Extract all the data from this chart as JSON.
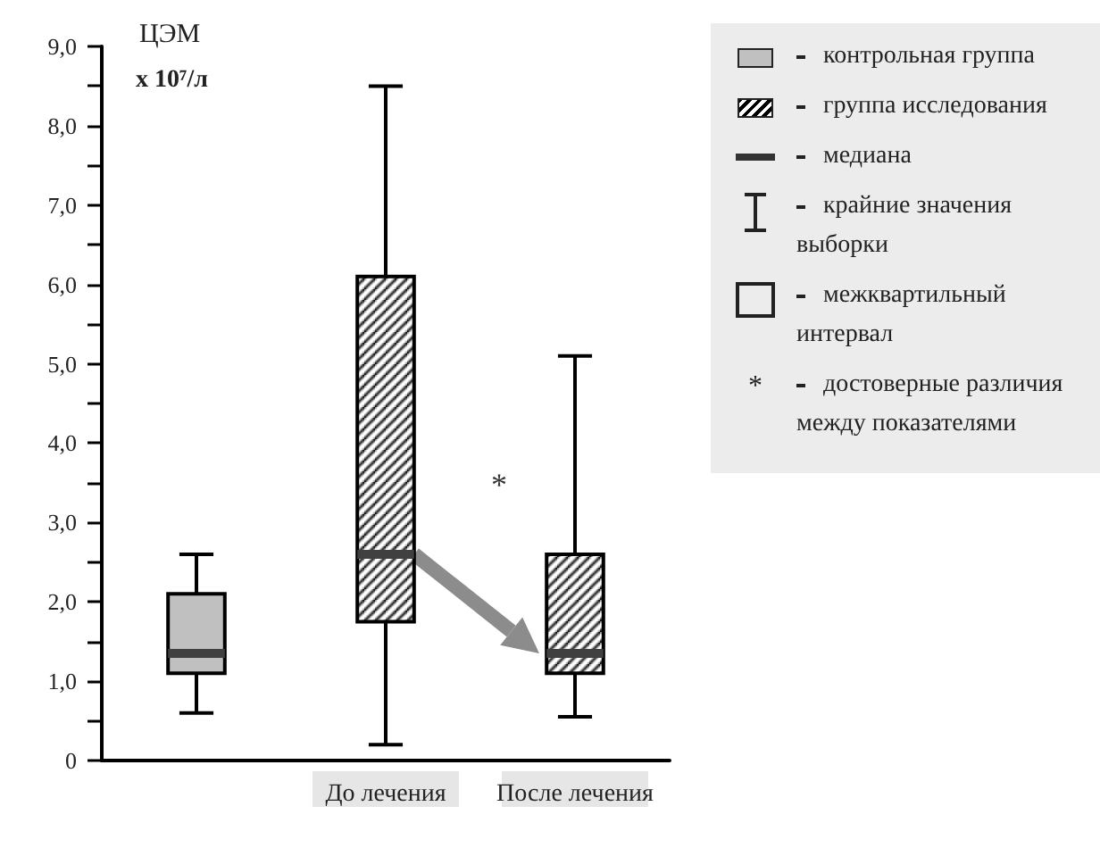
{
  "chart_data": {
    "type": "box",
    "ylabel": "ЦЭМ x 10⁷/л",
    "categories": [
      null,
      "До лечения",
      "После лечения"
    ],
    "series": [
      {
        "name": "контрольная группа",
        "color": "#c0c0c0",
        "boxes": [
          {
            "low": 0.6,
            "q1": 1.1,
            "median": 1.35,
            "q3": 2.1,
            "high": 2.6
          },
          null,
          null
        ]
      },
      {
        "name": "группа исследования",
        "color": "#000000",
        "boxes": [
          null,
          {
            "low": 0.2,
            "q1": 1.75,
            "median": 2.6,
            "q3": 6.1,
            "high": 8.5
          },
          {
            "low": 0.55,
            "q1": 1.1,
            "median": 1.35,
            "q3": 2.6,
            "high": 5.1
          }
        ]
      }
    ],
    "ylim": [
      0,
      9
    ],
    "yticks": [
      0,
      {
        "value": 0.5,
        "label": null
      },
      {
        "value": 1,
        "label": "1,0"
      },
      {
        "value": 1.5,
        "label": null
      },
      {
        "value": 2,
        "label": "2,0"
      },
      {
        "value": 2.5,
        "label": null
      },
      {
        "value": 3,
        "label": "3,0"
      },
      {
        "value": 3.5,
        "label": null
      },
      {
        "value": 4,
        "label": "4,0"
      },
      {
        "value": 4.5,
        "label": null
      },
      {
        "value": 5,
        "label": "5,0"
      },
      {
        "value": 5.5,
        "label": null
      },
      {
        "value": 6,
        "label": "6,0"
      },
      {
        "value": 6.5,
        "label": null
      },
      {
        "value": 7,
        "label": "7,0"
      },
      {
        "value": 7.5,
        "label": null
      },
      {
        "value": 8,
        "label": "8,0"
      },
      {
        "value": 8.5,
        "label": null
      },
      {
        "value": 9,
        "label": "9,0"
      }
    ],
    "annotations": [
      "*",
      "медиана",
      "крайние значения выборки",
      "межквартильный интервал",
      "достоверные различия между показателями"
    ],
    "grid": false,
    "legend": "right"
  }
}
